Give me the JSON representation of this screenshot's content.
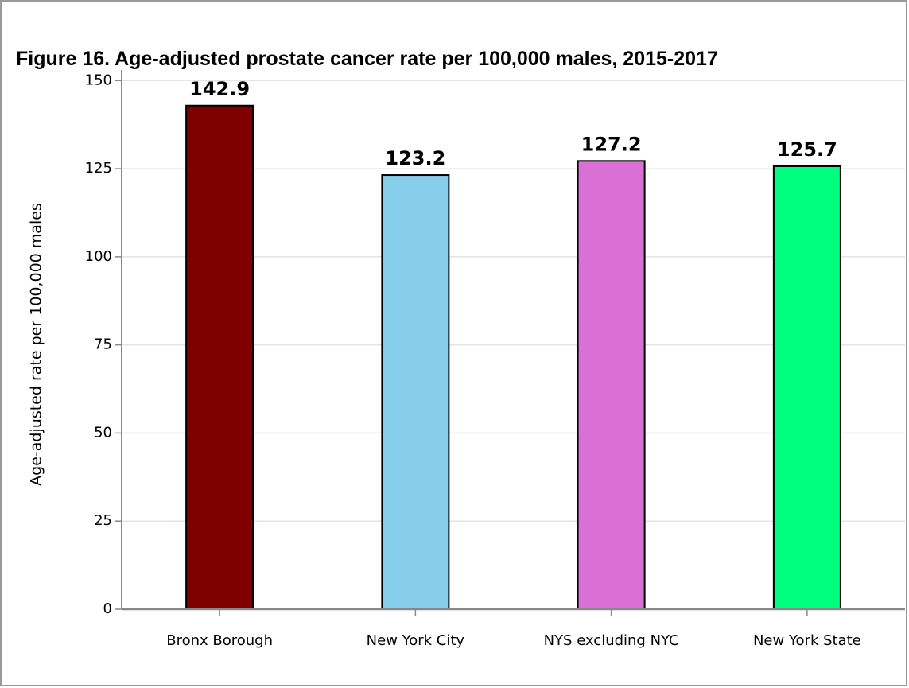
{
  "chart_data": {
    "type": "bar",
    "title": "Figure 16. Age-adjusted prostate cancer rate per 100,000 males, 2015-2017",
    "y_label": "Age-adjusted rate per 100,000 males",
    "categories": [
      "Bronx Borough",
      "New York City",
      "NYS excluding NYC",
      "New York State"
    ],
    "values": [
      142.9,
      123.2,
      127.2,
      125.7
    ],
    "colors": [
      "#800000",
      "#87ceeb",
      "#da70d6",
      "#00ff7f"
    ],
    "ylim": [
      0,
      153
    ],
    "yticks": [
      0,
      25,
      50,
      75,
      100,
      125,
      150
    ],
    "grid": true
  }
}
